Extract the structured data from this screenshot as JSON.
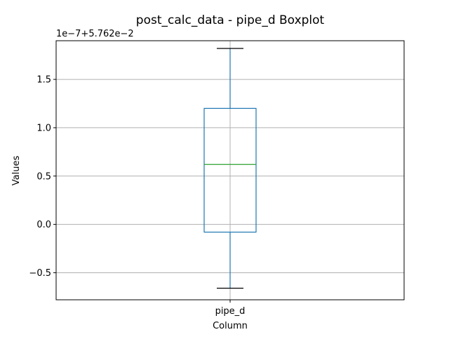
{
  "chart_data": {
    "type": "box",
    "title": "post_calc_data - pipe_d Boxplot",
    "xlabel": "Column",
    "ylabel": "Values",
    "offset_label": "1e−7+5.762e−2",
    "categories": [
      "pipe_d"
    ],
    "boxes": [
      {
        "name": "pipe_d",
        "whisker_low": -0.66,
        "q1": -0.08,
        "median": 0.62,
        "q3": 1.2,
        "whisker_high": 1.82
      }
    ],
    "ylim": [
      -0.78,
      1.9
    ],
    "yticks": [
      -0.5,
      0.0,
      0.5,
      1.0,
      1.5
    ],
    "ytick_labels": [
      "−0.5",
      "0.0",
      "0.5",
      "1.0",
      "1.5"
    ],
    "grid": true,
    "colors": {
      "box": "#1f77b4",
      "median": "#2ca02c",
      "cap": "#000000",
      "grid": "#b0b0b0"
    }
  }
}
